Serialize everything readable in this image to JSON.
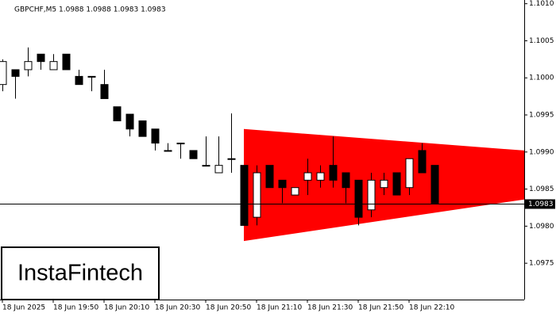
{
  "chart_data": {
    "type": "candlestick",
    "title": "GBPCHF,M5  1.0988 1.0988 1.0983 1.0983",
    "logo": "InstaFintech",
    "categories": [
      "18 Jun 2025",
      null,
      null,
      null,
      "18 Jun 19:50",
      null,
      null,
      null,
      "18 Jun 20:10",
      null,
      null,
      null,
      "18 Jun 20:30",
      null,
      null,
      null,
      "18 Jun 20:50",
      null,
      null,
      null,
      "18 Jun 21:10",
      null,
      null,
      null,
      "18 Jun 21:30",
      null,
      null,
      null,
      "18 Jun 21:50",
      null,
      null,
      null,
      "18 Jun 22:10",
      null,
      null
    ],
    "open": [
      1.09991,
      1.10011,
      1.10011,
      1.10032,
      1.10011,
      1.10032,
      1.10002,
      1.10002,
      1.09991,
      1.09961,
      1.09951,
      1.09942,
      1.09931,
      1.09902,
      1.09912,
      1.09902,
      1.09882,
      1.09872,
      1.09891,
      1.09882,
      1.09812,
      1.09882,
      1.09862,
      1.09842,
      1.09862,
      1.09862,
      1.09882,
      1.09872,
      1.09862,
      1.09822,
      1.09852,
      1.09872,
      1.09852,
      1.09902,
      1.09882
    ],
    "high": [
      1.10025,
      1.10011,
      1.10041,
      1.10032,
      1.10032,
      1.10032,
      1.10011,
      1.10002,
      1.10011,
      1.09961,
      1.09951,
      1.09942,
      1.09931,
      1.09912,
      1.09912,
      1.09902,
      1.09921,
      1.09921,
      1.09952,
      1.09882,
      1.09882,
      1.09882,
      1.09862,
      1.09852,
      1.09891,
      1.09882,
      1.09921,
      1.09872,
      1.09862,
      1.09872,
      1.09872,
      1.09872,
      1.09891,
      1.09912,
      1.09882
    ],
    "low": [
      1.09982,
      1.09972,
      1.10002,
      1.10011,
      1.10011,
      1.10011,
      1.09991,
      1.09982,
      1.09972,
      1.09942,
      1.09921,
      1.09921,
      1.09902,
      1.09902,
      1.09891,
      1.09891,
      1.09882,
      1.09872,
      1.09872,
      1.09801,
      1.09801,
      1.09852,
      1.09831,
      1.09842,
      1.09842,
      1.09852,
      1.09852,
      1.09831,
      1.09801,
      1.09812,
      1.09842,
      1.09842,
      1.09842,
      1.09872,
      1.09831
    ],
    "close": [
      1.10022,
      1.10002,
      1.10022,
      1.10022,
      1.10022,
      1.10011,
      1.09991,
      1.10002,
      1.09972,
      1.09942,
      1.09931,
      1.09921,
      1.09912,
      1.09902,
      1.09912,
      1.09891,
      1.09882,
      1.09882,
      1.09891,
      1.09801,
      1.09872,
      1.09852,
      1.09852,
      1.09852,
      1.09872,
      1.09872,
      1.09862,
      1.09852,
      1.09812,
      1.09862,
      1.09862,
      1.09842,
      1.09891,
      1.09872,
      1.09831
    ],
    "up_color": "#ffffff",
    "down_color": "#000000",
    "triangle": {
      "color": "#ff0000",
      "start": 19,
      "upper": [
        1.09931,
        1.09902
      ],
      "lower": [
        1.0978,
        1.09836
      ]
    },
    "last_price": 1.0983,
    "ylim": [
      1.09701,
      1.10105
    ],
    "yticks": [
      {
        "value": 1.101,
        "label": "1.1010"
      },
      1.1005,
      {
        "value": 1.1,
        "label": "1.1000"
      },
      1.0995,
      {
        "value": 1.099,
        "label": "1.0990"
      },
      1.0985,
      {
        "value": 1.098,
        "label": "1.0980"
      },
      1.0975
    ]
  }
}
